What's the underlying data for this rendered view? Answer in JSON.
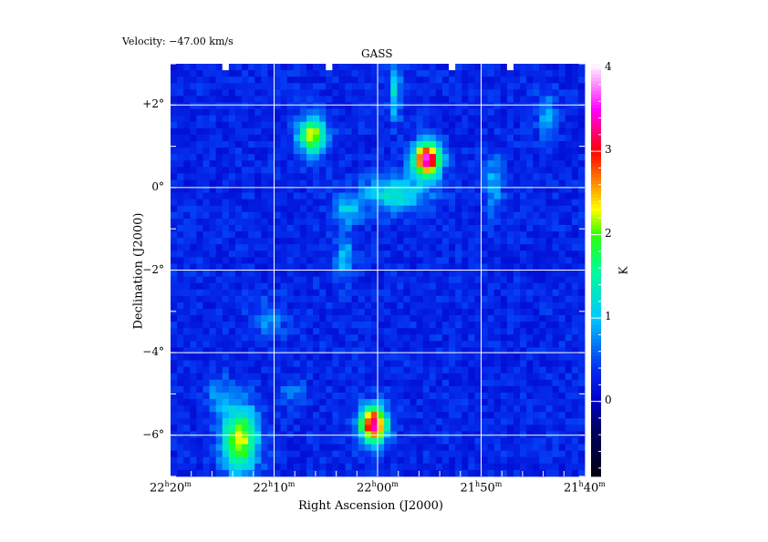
{
  "header": {
    "velocity_label": "Velocity: −47.00 km/s"
  },
  "chart_data": {
    "type": "heatmap",
    "title": "GASS",
    "xlabel": "Right Ascension (J2000)",
    "ylabel": "Declination (J2000)",
    "colorbar_label": "K",
    "x_ticks": [
      {
        "label_h": "22",
        "label_m": "20",
        "ra_min": 1340
      },
      {
        "label_h": "22",
        "label_m": "10",
        "ra_min": 1330
      },
      {
        "label_h": "22",
        "label_m": "00",
        "ra_min": 1320
      },
      {
        "label_h": "21",
        "label_m": "50",
        "ra_min": 1310
      },
      {
        "label_h": "21",
        "label_m": "40",
        "ra_min": 1300
      }
    ],
    "y_ticks": [
      {
        "label": "+2°",
        "dec": 2
      },
      {
        "label": "0°",
        "dec": 0
      },
      {
        "label": "−2°",
        "dec": -2
      },
      {
        "label": "−4°",
        "dec": -4
      },
      {
        "label": "−6°",
        "dec": -6
      }
    ],
    "colorbar_ticks": [
      "4",
      "3",
      "2",
      "1",
      "0"
    ],
    "colorbar_tick_values": [
      4,
      3,
      2,
      1,
      0
    ],
    "xlim_ra_min": [
      1340,
      1300
    ],
    "ylim_dec": [
      -7.0,
      3.0
    ],
    "color_range_K": [
      -0.9,
      4.05
    ],
    "grid": true,
    "background_K": 0.3,
    "sources": [
      {
        "ra_min": 1326.3,
        "dec": 1.25,
        "peak_K": 2.0,
        "sigma_ra_min": 0.9,
        "sigma_dec": 0.3
      },
      {
        "ra_min": 1315.2,
        "dec": 0.68,
        "peak_K": 3.3,
        "sigma_ra_min": 0.9,
        "sigma_dec": 0.28
      },
      {
        "ra_min": 1320.4,
        "dec": -5.75,
        "peak_K": 3.2,
        "sigma_ra_min": 0.9,
        "sigma_dec": 0.3
      },
      {
        "ra_min": 1333.3,
        "dec": -6.1,
        "peak_K": 2.0,
        "sigma_ra_min": 1.2,
        "sigma_dec": 0.55
      },
      {
        "ra_min": 1318.2,
        "dec": -0.15,
        "peak_K": 1.0,
        "sigma_ra_min": 2.2,
        "sigma_dec": 0.3
      },
      {
        "ra_min": 1323.0,
        "dec": -0.55,
        "peak_K": 0.7,
        "sigma_ra_min": 1.0,
        "sigma_dec": 0.25
      },
      {
        "ra_min": 1323.2,
        "dec": -1.7,
        "peak_K": 0.7,
        "sigma_ra_min": 0.6,
        "sigma_dec": 0.4
      },
      {
        "ra_min": 1318.3,
        "dec": 2.3,
        "peak_K": 0.9,
        "sigma_ra_min": 0.4,
        "sigma_dec": 0.45
      },
      {
        "ra_min": 1308.8,
        "dec": 0.1,
        "peak_K": 0.6,
        "sigma_ra_min": 0.6,
        "sigma_dec": 0.5
      },
      {
        "ra_min": 1303.7,
        "dec": 1.8,
        "peak_K": 0.6,
        "sigma_ra_min": 0.6,
        "sigma_dec": 0.4
      },
      {
        "ra_min": 1330.5,
        "dec": -3.2,
        "peak_K": 0.5,
        "sigma_ra_min": 1.0,
        "sigma_dec": 0.3
      },
      {
        "ra_min": 1335.3,
        "dec": -5.0,
        "peak_K": 0.5,
        "sigma_ra_min": 0.8,
        "sigma_dec": 0.3
      },
      {
        "ra_min": 1328.3,
        "dec": -4.9,
        "peak_K": 0.4,
        "sigma_ra_min": 0.8,
        "sigma_dec": 0.2
      }
    ],
    "colormap": [
      {
        "v": -0.9,
        "c": "#000010"
      },
      {
        "v": -0.3,
        "c": "#00006a"
      },
      {
        "v": 0.0,
        "c": "#0000c8"
      },
      {
        "v": 0.4,
        "c": "#0530f0"
      },
      {
        "v": 1.0,
        "c": "#00c8ff"
      },
      {
        "v": 1.6,
        "c": "#00ff90"
      },
      {
        "v": 2.0,
        "c": "#30ff00"
      },
      {
        "v": 2.3,
        "c": "#ffff00"
      },
      {
        "v": 2.65,
        "c": "#ff8000"
      },
      {
        "v": 3.0,
        "c": "#ff0000"
      },
      {
        "v": 3.5,
        "c": "#ff00ff"
      },
      {
        "v": 4.05,
        "c": "#ffffff"
      }
    ]
  }
}
